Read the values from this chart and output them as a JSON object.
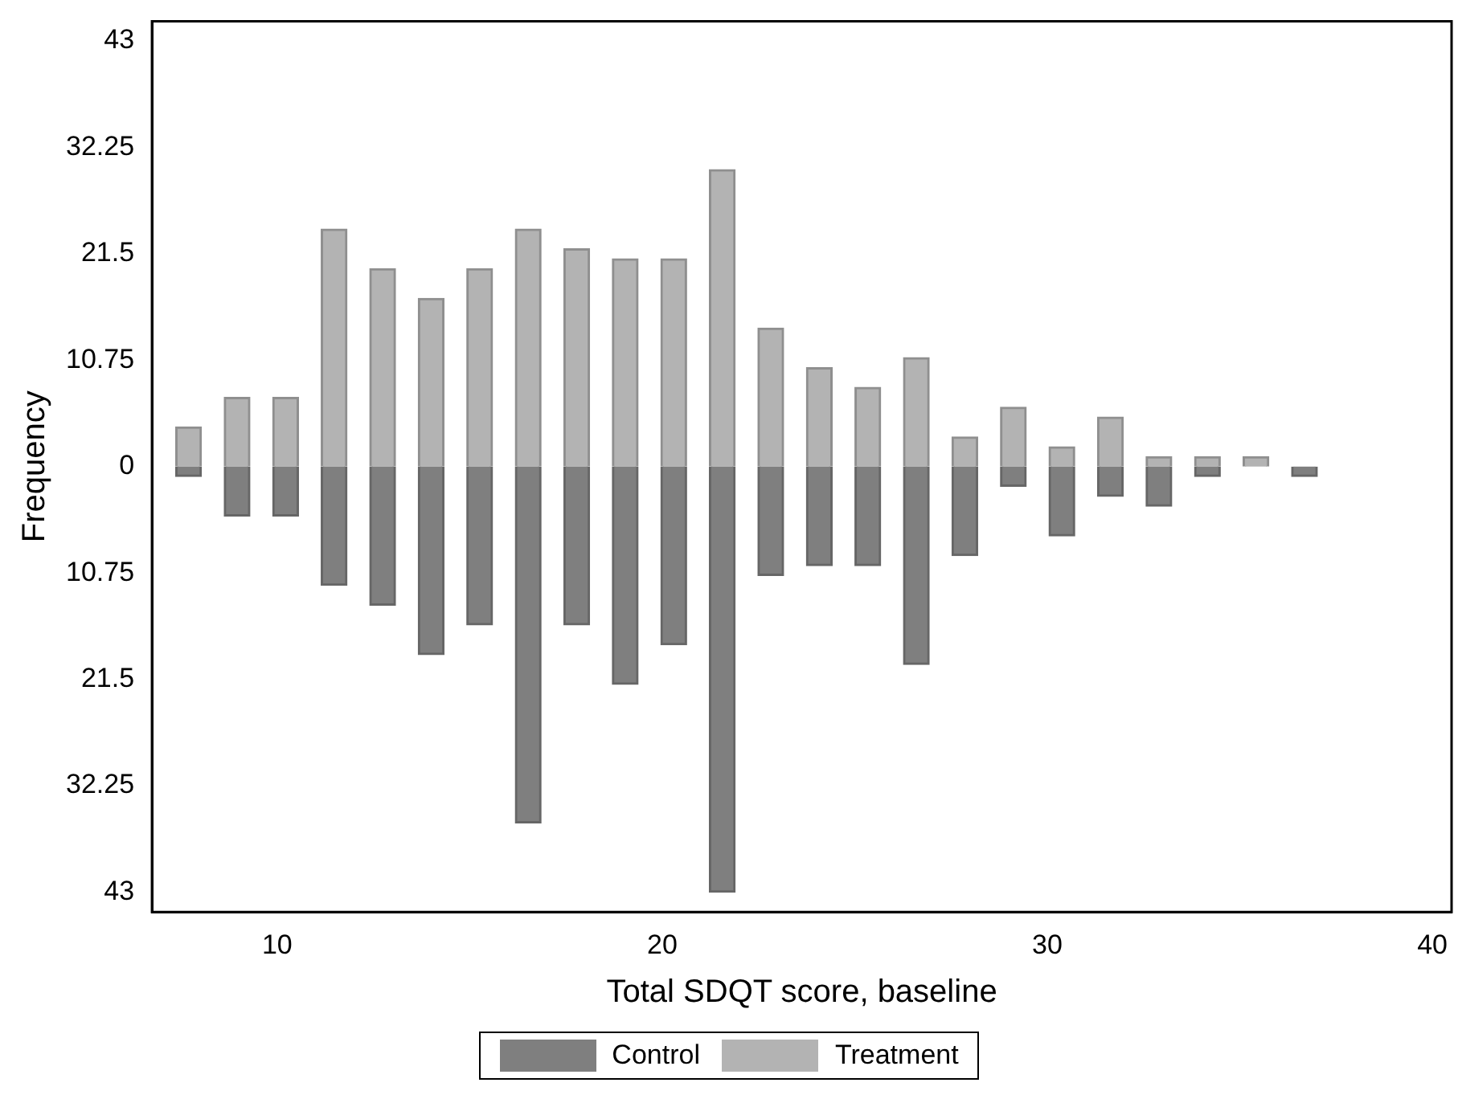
{
  "chart_data": {
    "type": "bar",
    "xlabel": "Total SDQT score, baseline",
    "ylabel": "Frequency",
    "x": [
      7.7,
      8.96,
      10.22,
      11.48,
      12.74,
      14,
      15.26,
      16.52,
      17.78,
      19.04,
      20.3,
      21.56,
      22.82,
      24.08,
      25.34,
      26.6,
      27.86,
      29.12,
      30.38,
      31.64,
      32.9,
      34.16,
      35.42,
      36.68
    ],
    "series": [
      {
        "name": "Control",
        "color": "#7f7f7f",
        "values": [
          -1,
          -5,
          -5,
          -12,
          -14,
          -19,
          -16,
          -36,
          -16,
          -22,
          -18,
          -43,
          -11,
          -10,
          -10,
          -20,
          -9,
          -2,
          -7,
          -3,
          -4,
          -1,
          0,
          -1
        ]
      },
      {
        "name": "Treatment",
        "color": "#b3b3b3",
        "values": [
          4,
          7,
          7,
          24,
          20,
          17,
          20,
          24,
          22,
          21,
          21,
          30,
          14,
          10,
          8,
          11,
          3,
          6,
          2,
          5,
          1,
          1,
          1,
          0
        ]
      }
    ],
    "xlim": [
      6.75,
      40.5
    ],
    "xticks": [
      10,
      20,
      30,
      40
    ],
    "ylim": [
      -45,
      45
    ],
    "yticks": [
      {
        "value": -43,
        "label": "43"
      },
      {
        "value": -32.25,
        "label": "32.25"
      },
      {
        "value": -21.5,
        "label": "21.5"
      },
      {
        "value": -10.75,
        "label": "10.75"
      },
      0,
      10.75,
      21.5,
      32.25,
      43
    ],
    "grid": false,
    "legend": "bottom",
    "stacked": true
  }
}
